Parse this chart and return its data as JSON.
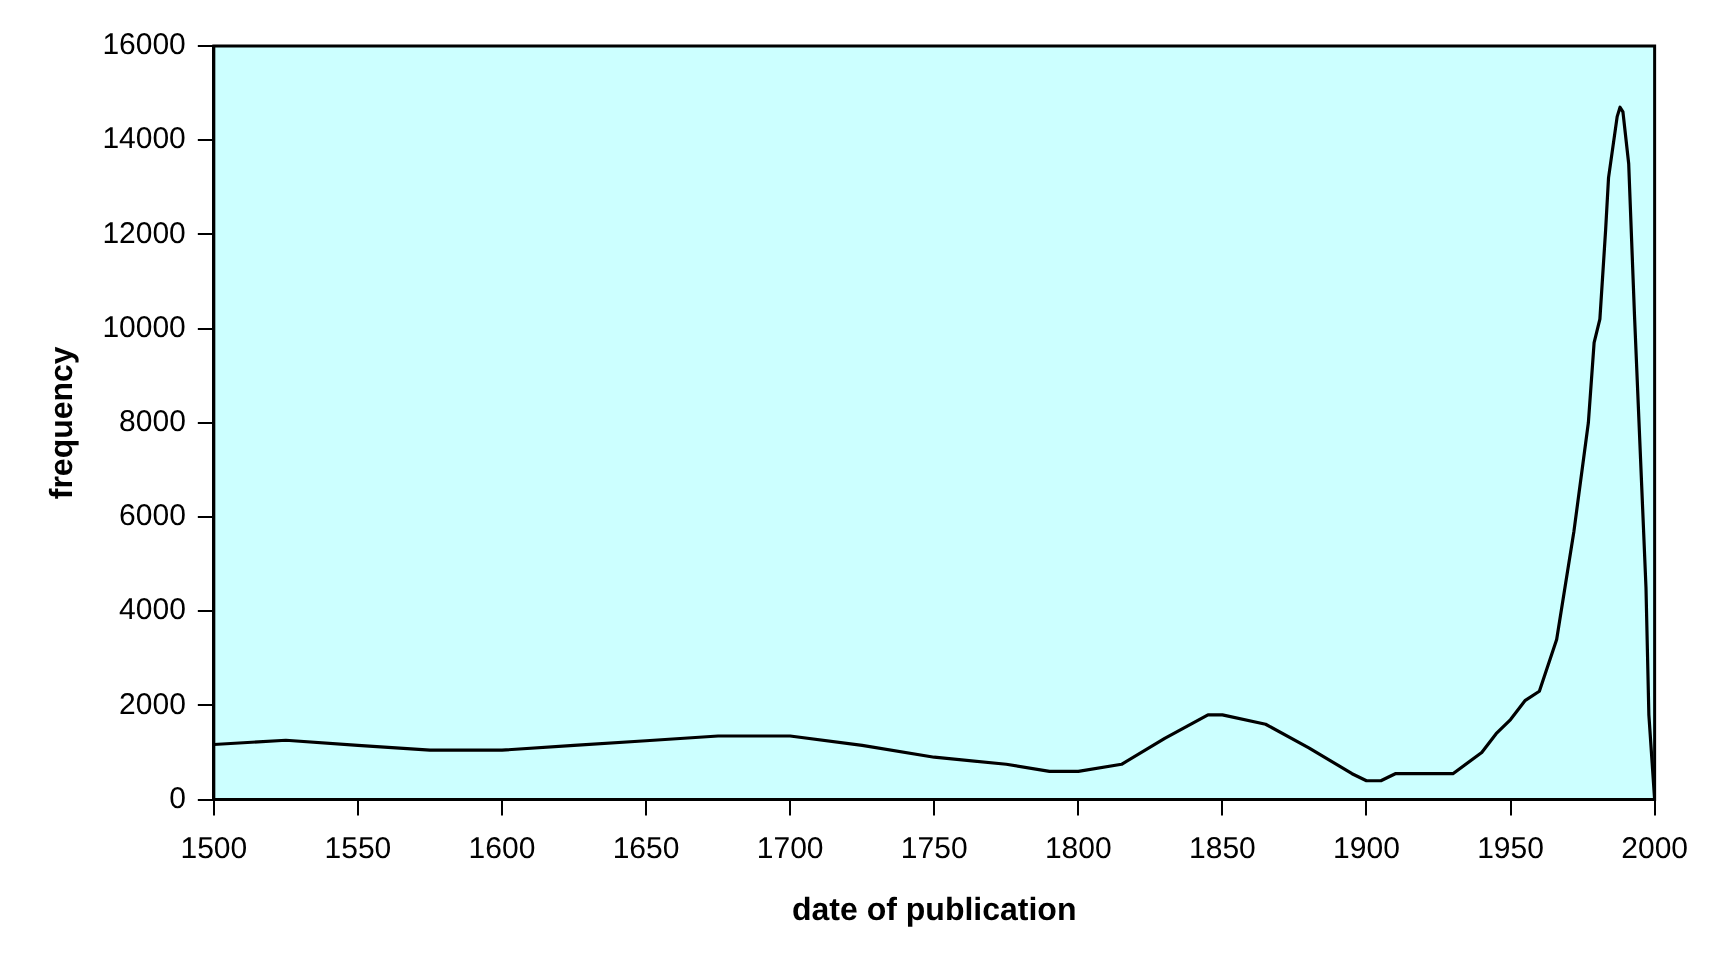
{
  "chart_data": {
    "type": "line",
    "xlabel": "date of publication",
    "ylabel": "frequency",
    "xlim": [
      1500,
      2000
    ],
    "xticks": [
      1500,
      1550,
      1600,
      1650,
      1700,
      1750,
      1800,
      1850,
      1900,
      1950,
      2000
    ],
    "ylim": [
      0,
      16000
    ],
    "yticks": [
      0,
      2000,
      4000,
      6000,
      8000,
      10000,
      12000,
      14000,
      16000
    ],
    "grid": false,
    "legend": false,
    "marker": "none",
    "line_style": "solid",
    "x": [
      1500,
      1525,
      1550,
      1575,
      1600,
      1625,
      1650,
      1675,
      1700,
      1725,
      1750,
      1775,
      1790,
      1800,
      1815,
      1830,
      1845,
      1850,
      1865,
      1880,
      1895,
      1900,
      1905,
      1910,
      1930,
      1940,
      1945,
      1950,
      1955,
      1960,
      1966,
      1972,
      1977,
      1979,
      1981,
      1983,
      1984,
      1987,
      1988,
      1989,
      1991,
      1993,
      1997,
      1998,
      2000
    ],
    "series": [
      {
        "color": "#000000",
        "values": [
          1170,
          1260,
          1150,
          1050,
          1050,
          1150,
          1250,
          1350,
          1350,
          1150,
          900,
          750,
          600,
          600,
          750,
          1300,
          1800,
          1800,
          1600,
          1100,
          550,
          400,
          400,
          550,
          550,
          1000,
          1400,
          1700,
          2100,
          2300,
          3400,
          5700,
          8000,
          9700,
          10200,
          12100,
          13200,
          14500,
          14700,
          14600,
          13500,
          10300,
          4500,
          1800,
          0
        ]
      }
    ]
  }
}
